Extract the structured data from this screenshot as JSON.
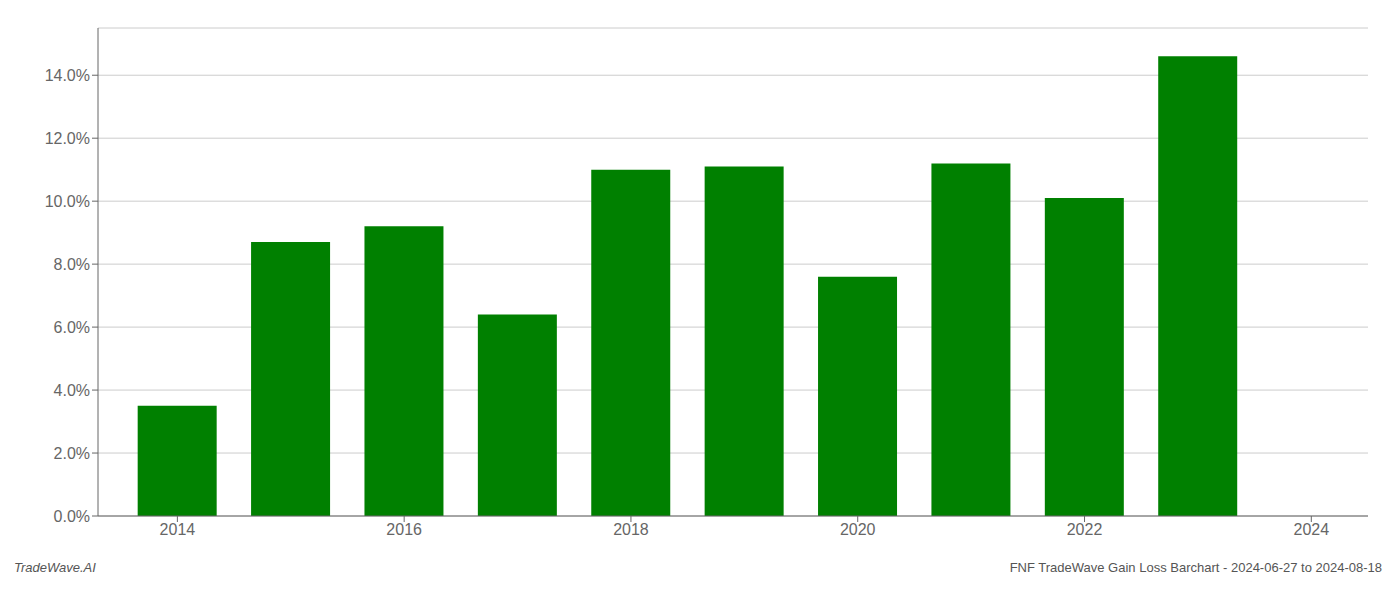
{
  "chart_data": {
    "type": "bar",
    "x": [
      2014,
      2015,
      2016,
      2017,
      2018,
      2019,
      2020,
      2021,
      2022,
      2023
    ],
    "values": [
      0.035,
      0.087,
      0.092,
      0.064,
      0.11,
      0.111,
      0.076,
      0.112,
      0.101,
      0.146
    ],
    "color": "#008000",
    "xlim": [
      2013.3,
      2024.5
    ],
    "xticks": [
      2014,
      2016,
      2018,
      2020,
      2022,
      2024
    ],
    "ylim": [
      0.0,
      0.155
    ],
    "yticks": [
      {
        "value": 0.0,
        "label": "0.0%"
      },
      {
        "value": 0.02,
        "label": "2.0%"
      },
      {
        "value": 0.04,
        "label": "4.0%"
      },
      {
        "value": 0.06,
        "label": "6.0%"
      },
      {
        "value": 0.08,
        "label": "8.0%"
      },
      {
        "value": 0.1,
        "label": "10.0%"
      },
      {
        "value": 0.12,
        "label": "12.0%"
      },
      {
        "value": 0.14,
        "label": "14.0%"
      }
    ],
    "grid": true,
    "annotations": [
      "TradeWave.AI",
      "FNF TradeWave Gain Loss Barchart - 2024-06-27 to 2024-08-18"
    ]
  }
}
